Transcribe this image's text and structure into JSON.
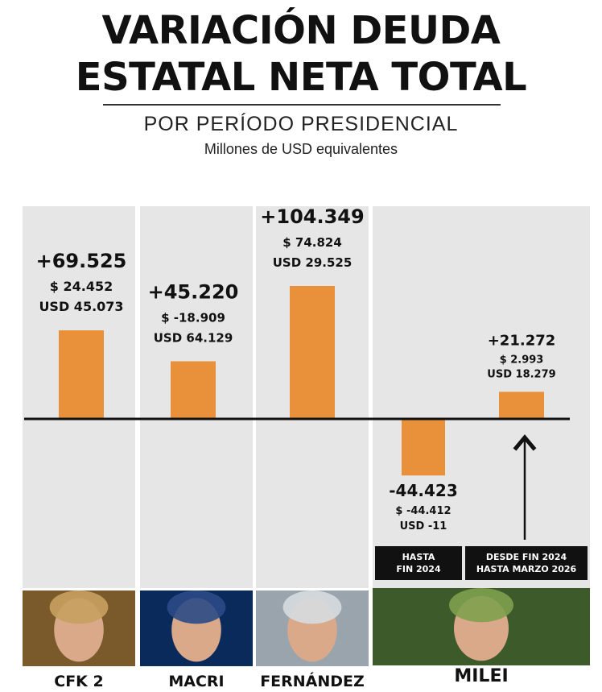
{
  "header": {
    "title_line1": "VARIACIÓN DEUDA",
    "title_line2": "ESTATAL NETA TOTAL",
    "subtitle": "POR PERÍODO PRESIDENCIAL",
    "units": "Millones de USD equivalentes"
  },
  "chart_data": {
    "type": "bar",
    "title": "VARIACIÓN DEUDA ESTATAL NETA TOTAL",
    "subtitle": "POR PERÍODO PRESIDENCIAL",
    "ylabel": "Millones de USD equivalentes",
    "grid": false,
    "bars": [
      {
        "president": "CFK 2",
        "period": "",
        "value": 69525,
        "total_label": "+69.525",
        "pesos_label": "$  24.452",
        "usd_label": "USD  45.073"
      },
      {
        "president": "MACRI",
        "period": "",
        "value": 45220,
        "total_label": "+45.220",
        "pesos_label": "$ -18.909",
        "usd_label": "USD 64.129"
      },
      {
        "president": "FERNÁNDEZ",
        "period": "",
        "value": 104349,
        "total_label": "+104.349",
        "pesos_label": "$  74.824",
        "usd_label": "USD  29.525"
      },
      {
        "president": "MILEI",
        "period": [
          "HASTA",
          "FIN 2024"
        ],
        "value": -44423,
        "total_label": "-44.423",
        "pesos_label": "$ -44.412",
        "usd_label": "USD -11"
      },
      {
        "president": "MILEI",
        "period": [
          "DESDE FIN 2024",
          "HASTA MARZO 2026"
        ],
        "value": 21272,
        "total_label": "+21.272",
        "pesos_label": "$ 2.993",
        "usd_label": "USD  18.279"
      }
    ],
    "columns": [
      "CFK 2",
      "MACRI",
      "FERNÁNDEZ",
      "MILEI"
    ],
    "colors": {
      "bar": "#e8913a",
      "column_background": "#e6e6e6",
      "tag_background": "#111111"
    }
  }
}
